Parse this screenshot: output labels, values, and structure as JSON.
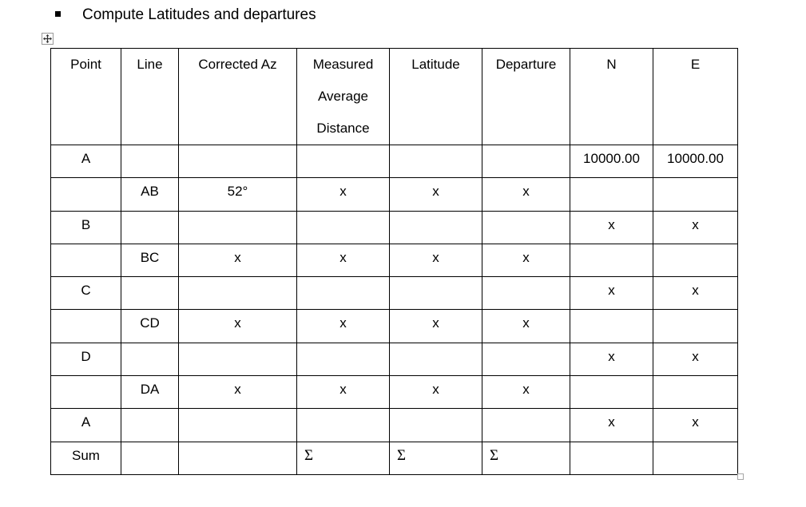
{
  "title": "Compute Latitudes and departures",
  "icons": {
    "list_bullet": "square-bullet",
    "table_move_handle": "move-cross-icon",
    "table_resize_handle": "resize-square-icon"
  },
  "colors": {
    "text": "#000000",
    "table_border": "#000000",
    "handle_border": "#9a9a9a"
  },
  "table": {
    "headers": [
      "Point",
      "Line",
      "Corrected Az",
      "Measured Average Distance",
      "Latitude",
      "Departure",
      "N",
      "E"
    ],
    "rows": [
      {
        "point": "A",
        "line": "",
        "az": "",
        "meas": "",
        "lat": "",
        "dep": "",
        "n": "10000.00",
        "e": "10000.00",
        "sum_row": false
      },
      {
        "point": "",
        "line": "AB",
        "az": "52°",
        "meas": "x",
        "lat": "x",
        "dep": "x",
        "n": "",
        "e": "",
        "sum_row": false
      },
      {
        "point": "B",
        "line": "",
        "az": "",
        "meas": "",
        "lat": "",
        "dep": "",
        "n": "x",
        "e": "x",
        "sum_row": false
      },
      {
        "point": "",
        "line": "BC",
        "az": "x",
        "meas": "x",
        "lat": "x",
        "dep": "x",
        "n": "",
        "e": "",
        "sum_row": false
      },
      {
        "point": "C",
        "line": "",
        "az": "",
        "meas": "",
        "lat": "",
        "dep": "",
        "n": "x",
        "e": "x",
        "sum_row": false
      },
      {
        "point": "",
        "line": "CD",
        "az": "x",
        "meas": "x",
        "lat": "x",
        "dep": "x",
        "n": "",
        "e": "",
        "sum_row": false
      },
      {
        "point": "D",
        "line": "",
        "az": "",
        "meas": "",
        "lat": "",
        "dep": "",
        "n": "x",
        "e": "x",
        "sum_row": false
      },
      {
        "point": "",
        "line": "DA",
        "az": "x",
        "meas": "x",
        "lat": "x",
        "dep": "x",
        "n": "",
        "e": "",
        "sum_row": false
      },
      {
        "point": "A",
        "line": "",
        "az": "",
        "meas": "",
        "lat": "",
        "dep": "",
        "n": "x",
        "e": "x",
        "sum_row": false
      },
      {
        "point": "Sum",
        "line": "",
        "az": "",
        "meas": "Σ",
        "lat": "Σ",
        "dep": "Σ",
        "n": "",
        "e": "",
        "sum_row": true
      }
    ]
  }
}
